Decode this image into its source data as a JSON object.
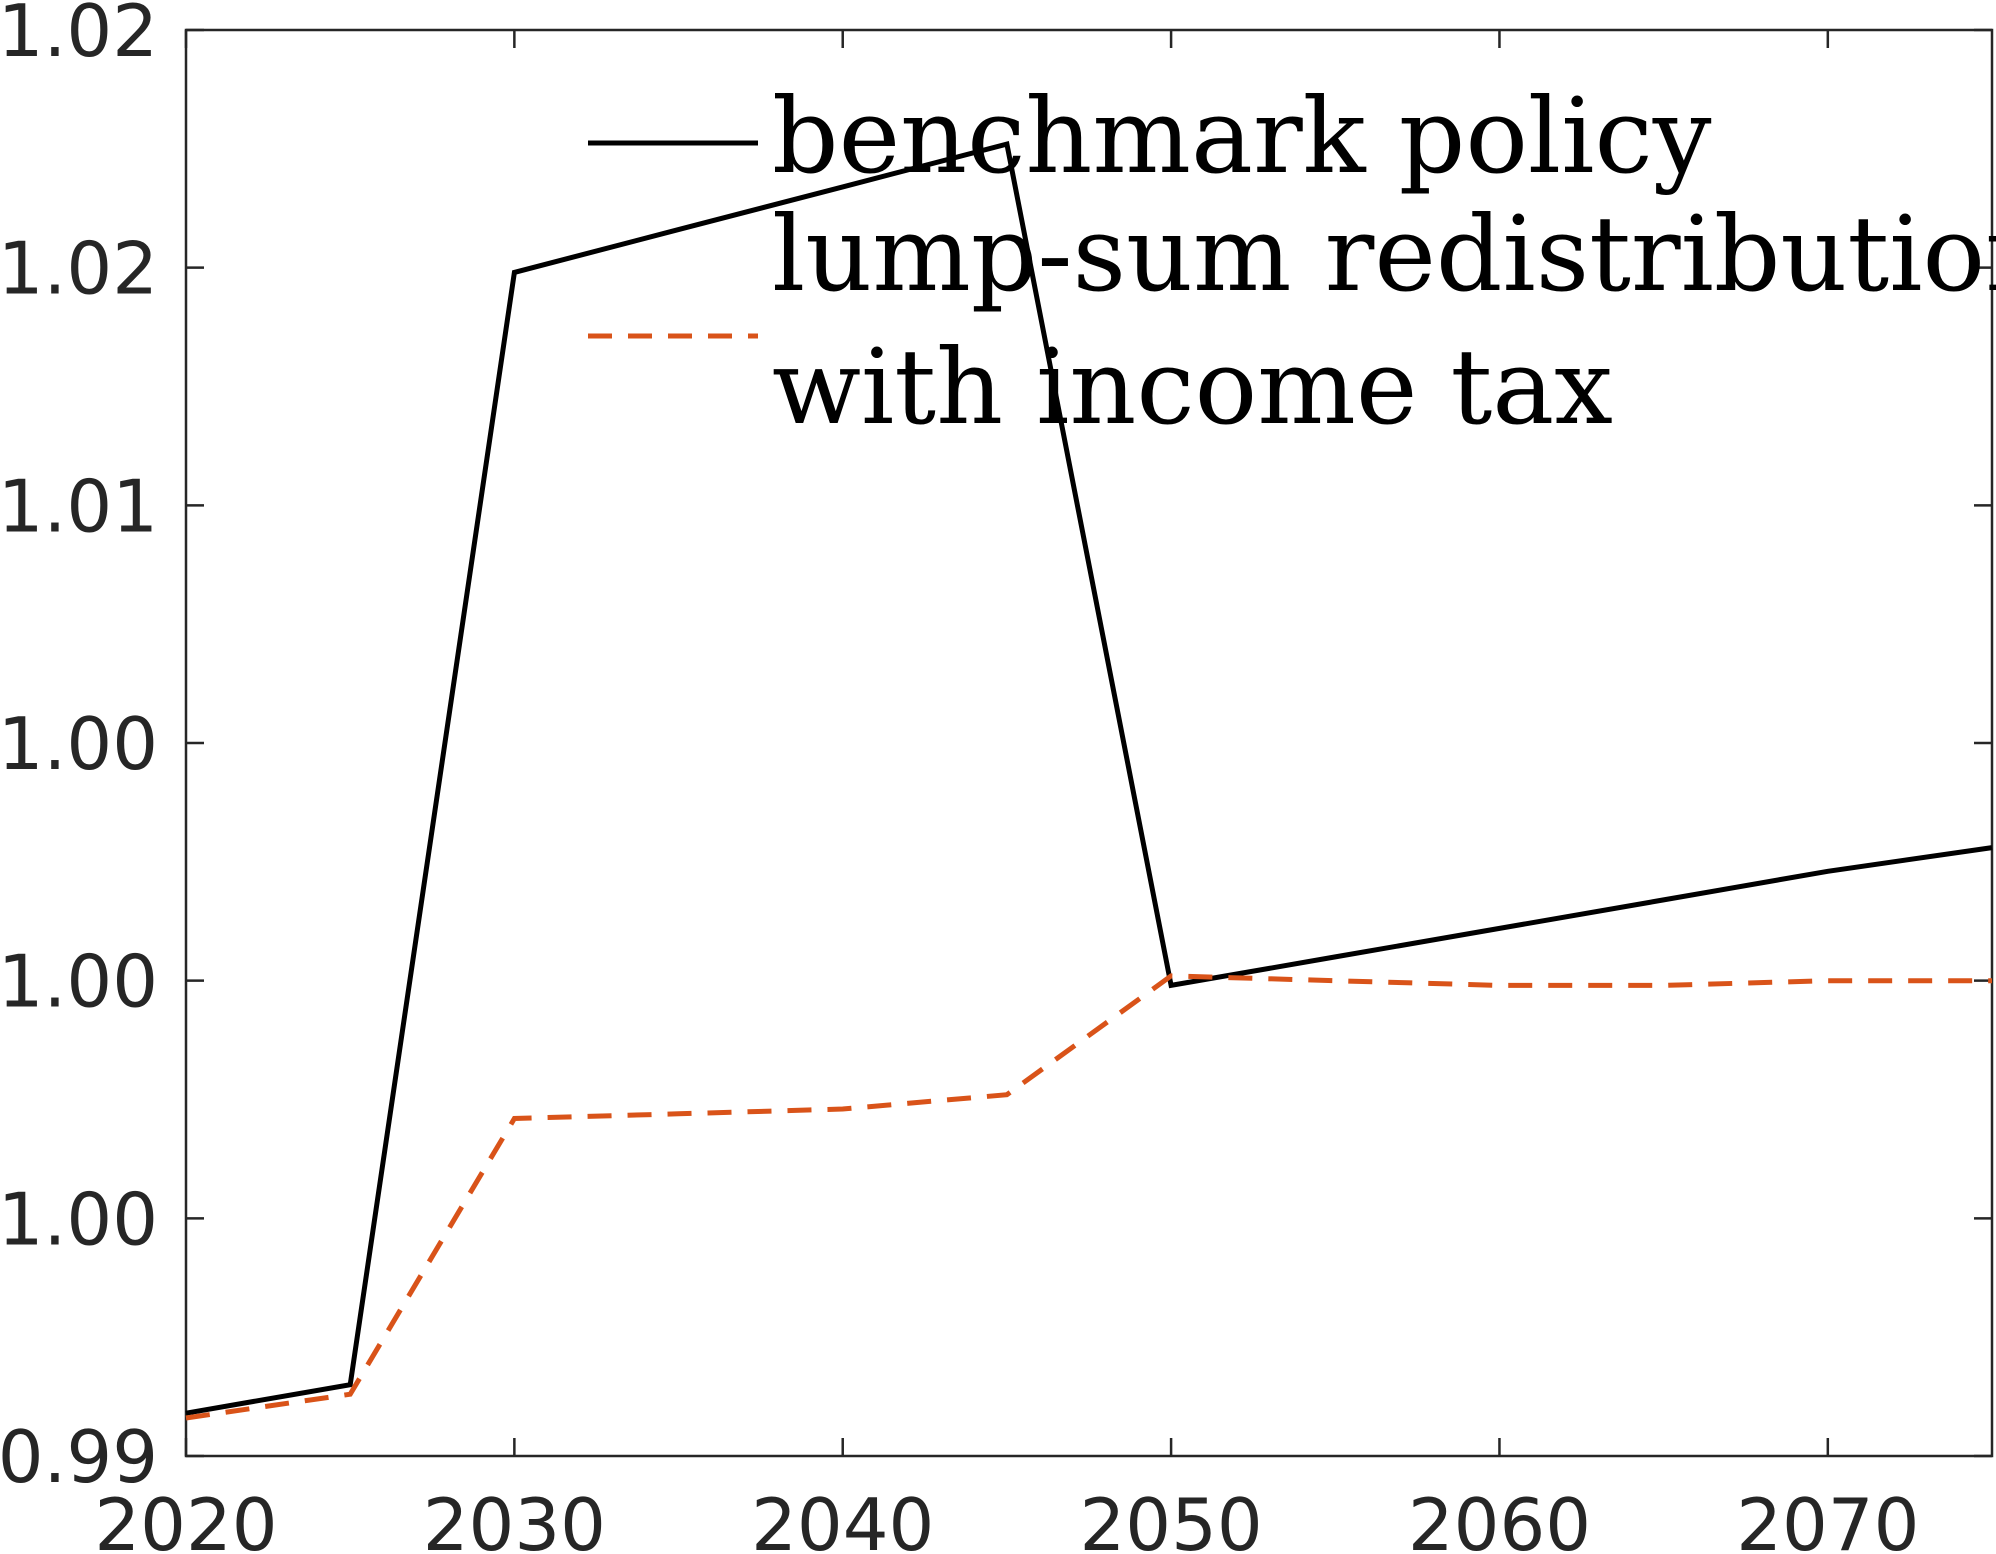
{
  "chart_data": {
    "type": "line",
    "title": "",
    "xlabel": "",
    "ylabel": "",
    "x": [
      2020,
      2025,
      2030,
      2035,
      2040,
      2045,
      2050,
      2055,
      2060,
      2065,
      2070,
      2075
    ],
    "xlim": [
      2020,
      2075
    ],
    "ylim": [
      0.99,
      1.02
    ],
    "xticks": [
      2020,
      2030,
      2040,
      2050,
      2060,
      2070
    ],
    "xtick_labels": [
      "2020",
      "2030",
      "2040",
      "2050",
      "2060",
      "2070"
    ],
    "yticks": [
      0.99,
      0.995,
      1.0,
      1.005,
      1.01,
      1.015,
      1.02
    ],
    "ytick_labels": [
      "0.99",
      "1.00",
      "1.00",
      "1.00",
      "1.01",
      "1.02",
      "1.02"
    ],
    "grid": false,
    "legend_position": "top-right",
    "legend_lines": [
      "benchmark policy",
      "lump-sum redistribution",
      "with income tax"
    ],
    "series": [
      {
        "name": "benchmark policy",
        "style": "solid",
        "color": "#000000",
        "values": [
          0.9909,
          0.9915,
          1.0149,
          1.0158,
          1.0167,
          1.0176,
          0.9999,
          1.0005,
          1.0011,
          1.0017,
          1.0023,
          1.0028
        ]
      },
      {
        "name": "lump-sum redistribution with income tax",
        "style": "dashed",
        "color": "#D95319",
        "values": [
          0.9908,
          0.9913,
          0.9971,
          0.9972,
          0.9973,
          0.9976,
          1.0001,
          1.0,
          0.9999,
          0.9999,
          1.0,
          1.0
        ]
      }
    ]
  }
}
